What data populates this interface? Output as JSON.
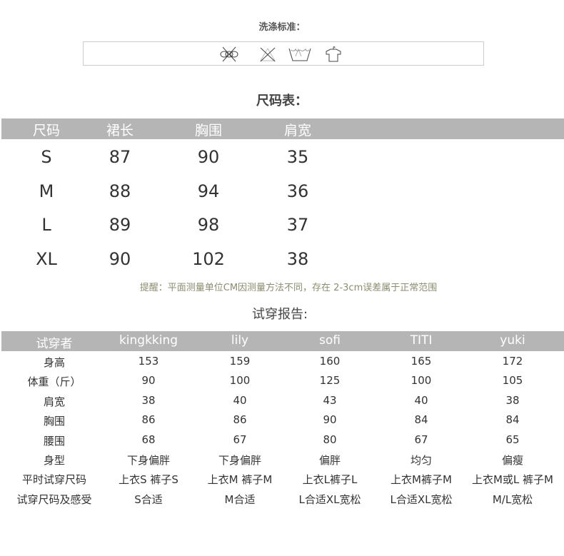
{
  "wash": {
    "title": "洗涤标准：",
    "icons": [
      "no-wring-icon",
      "no-bleach-icon",
      "hand-wash-icon",
      "hang-dry-icon"
    ]
  },
  "size_chart": {
    "title": "尺码表：",
    "headers": [
      "尺码",
      "裙长",
      "胸围",
      "肩宽"
    ],
    "rows": [
      [
        "S",
        "87",
        "90",
        "35"
      ],
      [
        "M",
        "88",
        "94",
        "36"
      ],
      [
        "L",
        "89",
        "98",
        "37"
      ],
      [
        "XL",
        "90",
        "102",
        "38"
      ]
    ]
  },
  "note": "提醒：平面测量单位CM因测量方法不同，存在 2-3cm误差属于正常范围",
  "fit_report": {
    "title": "试穿报告:",
    "headers": [
      "试穿者",
      "kingkking",
      "lily",
      "sofi",
      "TITI",
      "yuki"
    ],
    "rows": [
      [
        "身高",
        "153",
        "159",
        "160",
        "165",
        "172"
      ],
      [
        "体重（斤）",
        "90",
        "100",
        "125",
        "100",
        "105"
      ],
      [
        "肩宽",
        "38",
        "40",
        "43",
        "40",
        "38"
      ],
      [
        "胸围",
        "86",
        "86",
        "90",
        "84",
        "84"
      ],
      [
        "腰围",
        "68",
        "67",
        "80",
        "67",
        "65"
      ],
      [
        "身型",
        "下身偏胖",
        "下身偏胖",
        "偏胖",
        "均匀",
        "偏瘦"
      ],
      [
        "平时试穿尺码",
        "上衣S 裤子S",
        "上衣M 裤子M",
        "上衣L裤子L",
        "上衣M裤子M",
        "上衣M或L 裤子M"
      ],
      [
        "试穿尺码及感受",
        "S合适",
        "M合适",
        "L合适XL宽松",
        "L合适XL宽松",
        "M/L宽松"
      ]
    ]
  }
}
